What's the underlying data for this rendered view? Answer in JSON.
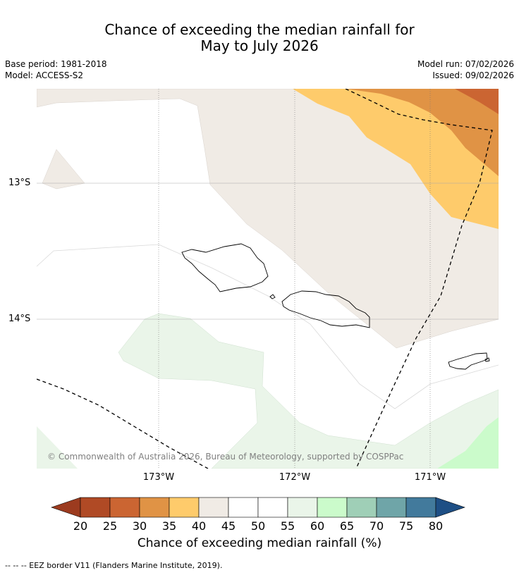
{
  "title_line1": "Chance of exceeding the median rainfall for",
  "title_line2": "May to July 2026",
  "meta": {
    "base_period": "Base period: 1981-2018",
    "model": "Model: ACCESS-S2",
    "model_run": "Model run: 07/02/2026",
    "issued": "Issued: 09/02/2026"
  },
  "axes": {
    "lat_labels": [
      "13°S",
      "14°S"
    ],
    "lon_labels": [
      "173°W",
      "172°W",
      "171°W"
    ]
  },
  "map": {
    "islands": [
      "Savai'i",
      "Upolu",
      "Tutuila"
    ],
    "zones": [
      {
        "name": "20-25",
        "color": "#b04a25"
      },
      {
        "name": "25-30",
        "color": "#cb6532"
      },
      {
        "name": "30-35",
        "color": "#e09345"
      },
      {
        "name": "35-40",
        "color": "#fecb6b"
      },
      {
        "name": "40-45",
        "color": "#f0ebe5"
      },
      {
        "name": "45-55",
        "color": "#ffffff"
      },
      {
        "name": "55-60",
        "color": "#eaf5e9"
      },
      {
        "name": "60-65",
        "color": "#cbfbcb"
      }
    ]
  },
  "copyright": "© Commonwealth of Australia 2026, Bureau of Meteorology, supported by COSPPac",
  "colorbar": {
    "ticks": [
      "20",
      "25",
      "30",
      "35",
      "40",
      "45",
      "50",
      "55",
      "60",
      "65",
      "70",
      "75",
      "80"
    ],
    "colors": [
      "#b04a25",
      "#cb6532",
      "#e09345",
      "#fecb6b",
      "#f0ebe5",
      "#ffffff",
      "#ffffff",
      "#eaf5e9",
      "#cbfbcb",
      "#9fcfb7",
      "#6fa5a8",
      "#427a9c"
    ],
    "under_color": "#9c3b1f",
    "over_color": "#1e4f85",
    "label": "Chance of exceeding median rainfall (%)"
  },
  "eez_note": "-- -- -- EEZ border V11 (Flanders Marine Institute, 2019)."
}
